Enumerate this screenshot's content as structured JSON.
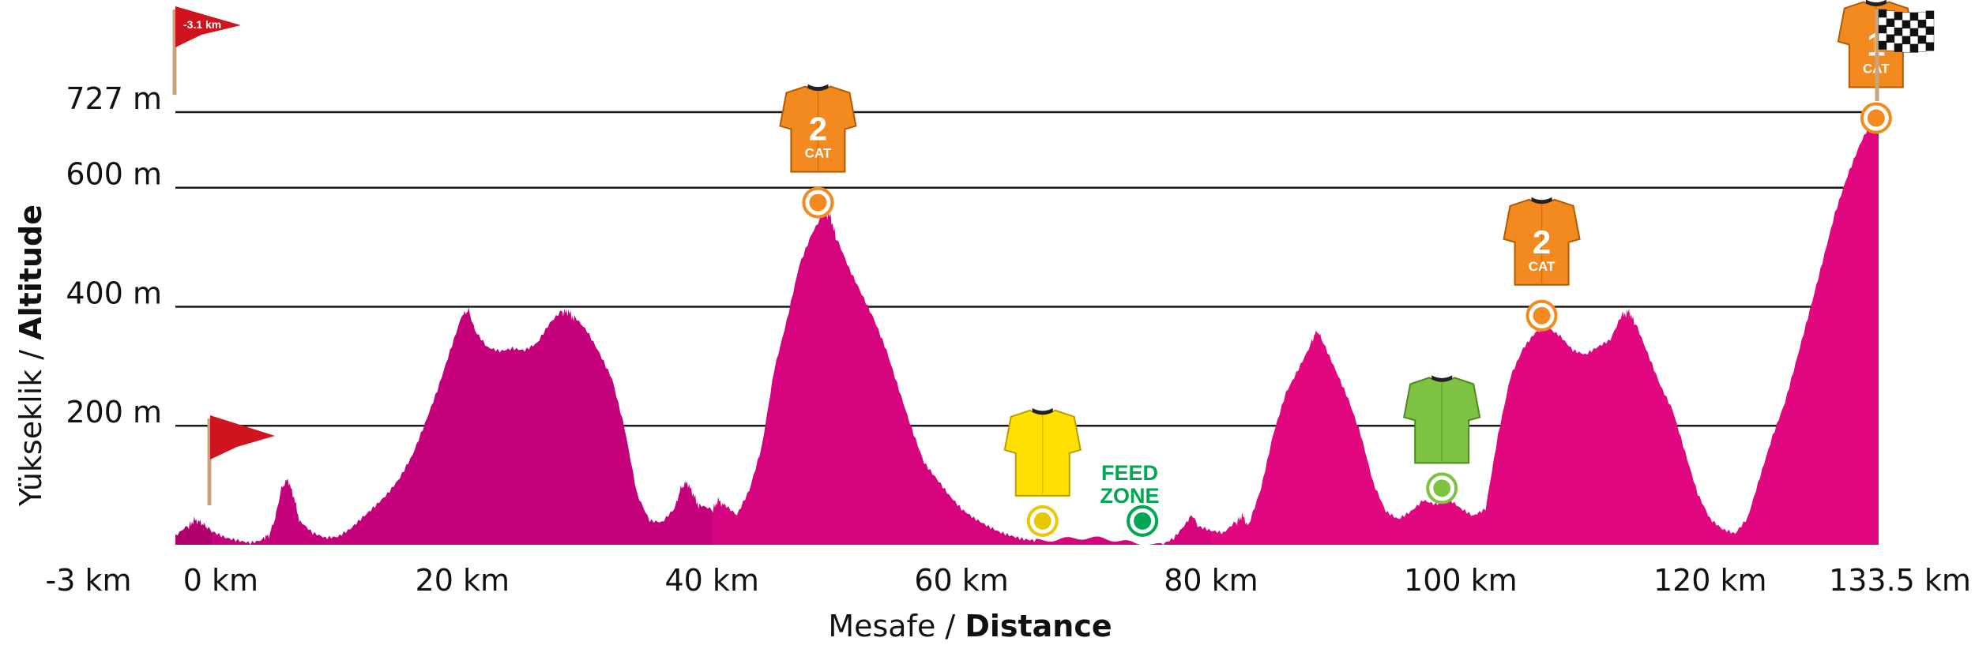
{
  "chart_data": {
    "type": "area",
    "xlabel_regular": "Mesafe",
    "xlabel_bold": "Distance",
    "ylabel_regular": "Yükseklik",
    "ylabel_bold": "Altitude",
    "xlim": [
      -3,
      133.5
    ],
    "ylim": [
      0,
      727
    ],
    "x_ticks": [
      {
        "value": -3,
        "label": "-3 km"
      },
      {
        "value": 0,
        "label": "0 km"
      },
      {
        "value": 20,
        "label": "20 km"
      },
      {
        "value": 40,
        "label": "40 km"
      },
      {
        "value": 60,
        "label": "60 km"
      },
      {
        "value": 80,
        "label": "80 km"
      },
      {
        "value": 100,
        "label": "100 km"
      },
      {
        "value": 120,
        "label": "120 km"
      },
      {
        "value": 133.5,
        "label": "133.5 km"
      }
    ],
    "y_ticks": [
      {
        "value": 200,
        "label": "200 m"
      },
      {
        "value": 400,
        "label": "400 m"
      },
      {
        "value": 600,
        "label": "600 m"
      },
      {
        "value": 727,
        "label": "727 m"
      }
    ],
    "grid": true,
    "colors": {
      "neutral_section": "#b0006e",
      "race_section": "#e0077f",
      "climb_marker": "#f28a1f",
      "sprint_marker": "#ffe000",
      "feed_marker": "#00a651",
      "points_marker": "#7dc242",
      "grid": "#1a1a1a"
    },
    "neutral_start_flag_label": "-3.1 km",
    "feed_zone_label_1": "FEED",
    "feed_zone_label_2": "ZONE",
    "markers": [
      {
        "name": "climb-cat2-1",
        "type": "climb",
        "category": "2",
        "cat_label": "CAT",
        "x": 48.5,
        "y": 575
      },
      {
        "name": "sprint",
        "type": "sprint",
        "x": 66.5,
        "y": 40
      },
      {
        "name": "feed-zone",
        "type": "feed",
        "x": 74.5,
        "y": 40
      },
      {
        "name": "points",
        "type": "points",
        "x": 98.5,
        "y": 95
      },
      {
        "name": "climb-cat2-2",
        "type": "climb",
        "category": "2",
        "cat_label": "CAT",
        "x": 106.5,
        "y": 385
      },
      {
        "name": "climb-cat1-finish",
        "type": "climb",
        "category": "1",
        "cat_label": "CAT",
        "x": 133.3,
        "y": 717
      }
    ],
    "profile": [
      [
        -3,
        10
      ],
      [
        -2,
        28
      ],
      [
        -1.5,
        42
      ],
      [
        -1,
        38
      ],
      [
        -0.5,
        30
      ],
      [
        0,
        22
      ],
      [
        1,
        15
      ],
      [
        2,
        12
      ],
      [
        3,
        8
      ],
      [
        4,
        12
      ],
      [
        4.5,
        15
      ],
      [
        5,
        45
      ],
      [
        5.5,
        95
      ],
      [
        6,
        110
      ],
      [
        6.5,
        80
      ],
      [
        7,
        35
      ],
      [
        8,
        15
      ],
      [
        9,
        8
      ],
      [
        10,
        12
      ],
      [
        11,
        28
      ],
      [
        12,
        50
      ],
      [
        13,
        70
      ],
      [
        14,
        90
      ],
      [
        15,
        115
      ],
      [
        16,
        150
      ],
      [
        17,
        200
      ],
      [
        18,
        255
      ],
      [
        19,
        320
      ],
      [
        20,
        385
      ],
      [
        20.5,
        395
      ],
      [
        21,
        360
      ],
      [
        22,
        335
      ],
      [
        23,
        330
      ],
      [
        24,
        335
      ],
      [
        25,
        330
      ],
      [
        26,
        340
      ],
      [
        27,
        370
      ],
      [
        28,
        390
      ],
      [
        28.5,
        392
      ],
      [
        29,
        378
      ],
      [
        30,
        355
      ],
      [
        31,
        320
      ],
      [
        32,
        280
      ],
      [
        33,
        200
      ],
      [
        34,
        90
      ],
      [
        35,
        45
      ],
      [
        36,
        40
      ],
      [
        37,
        60
      ],
      [
        37.5,
        95
      ],
      [
        38,
        105
      ],
      [
        38.5,
        85
      ],
      [
        39,
        62
      ],
      [
        40,
        55
      ],
      [
        40.5,
        75
      ],
      [
        41,
        65
      ],
      [
        42,
        50
      ],
      [
        43,
        95
      ],
      [
        44,
        170
      ],
      [
        45,
        300
      ],
      [
        46,
        380
      ],
      [
        47,
        470
      ],
      [
        48,
        520
      ],
      [
        49,
        555
      ],
      [
        49.5,
        552
      ],
      [
        50,
        510
      ],
      [
        51,
        460
      ],
      [
        52,
        420
      ],
      [
        53,
        380
      ],
      [
        54,
        330
      ],
      [
        55,
        265
      ],
      [
        56,
        200
      ],
      [
        57,
        140
      ],
      [
        58,
        110
      ],
      [
        59,
        80
      ],
      [
        60,
        55
      ],
      [
        61,
        40
      ],
      [
        62,
        30
      ],
      [
        63,
        22
      ],
      [
        64,
        18
      ],
      [
        65,
        14
      ],
      [
        66,
        12
      ],
      [
        68,
        10
      ],
      [
        70,
        7
      ],
      [
        72,
        5
      ],
      [
        74,
        4
      ],
      [
        76,
        5
      ],
      [
        77,
        15
      ],
      [
        78,
        38
      ],
      [
        78.5,
        50
      ],
      [
        79,
        30
      ],
      [
        80,
        20
      ],
      [
        81,
        15
      ],
      [
        82,
        35
      ],
      [
        82.5,
        50
      ],
      [
        83,
        30
      ],
      [
        84,
        95
      ],
      [
        85,
        190
      ],
      [
        86,
        260
      ],
      [
        87,
        300
      ],
      [
        88,
        340
      ],
      [
        88.5,
        360
      ],
      [
        89,
        340
      ],
      [
        90,
        290
      ],
      [
        91,
        240
      ],
      [
        92,
        180
      ],
      [
        93,
        100
      ],
      [
        94,
        55
      ],
      [
        95,
        45
      ],
      [
        96,
        60
      ],
      [
        97,
        80
      ],
      [
        98,
        72
      ],
      [
        99,
        80
      ],
      [
        100,
        60
      ],
      [
        101,
        45
      ],
      [
        102,
        55
      ],
      [
        103,
        180
      ],
      [
        104,
        280
      ],
      [
        105,
        330
      ],
      [
        106,
        360
      ],
      [
        107,
        370
      ],
      [
        108,
        355
      ],
      [
        109,
        330
      ],
      [
        110,
        320
      ],
      [
        111,
        330
      ],
      [
        112,
        340
      ],
      [
        113,
        385
      ],
      [
        113.5,
        392
      ],
      [
        114,
        370
      ],
      [
        115,
        320
      ],
      [
        116,
        270
      ],
      [
        117,
        230
      ],
      [
        118,
        160
      ],
      [
        119,
        90
      ],
      [
        120,
        45
      ],
      [
        121,
        25
      ],
      [
        122,
        15
      ],
      [
        123,
        40
      ],
      [
        124,
        110
      ],
      [
        125,
        180
      ],
      [
        126,
        240
      ],
      [
        127,
        320
      ],
      [
        128,
        400
      ],
      [
        129,
        480
      ],
      [
        130,
        560
      ],
      [
        131,
        620
      ],
      [
        132,
        670
      ],
      [
        133,
        710
      ],
      [
        133.5,
        727
      ]
    ]
  }
}
